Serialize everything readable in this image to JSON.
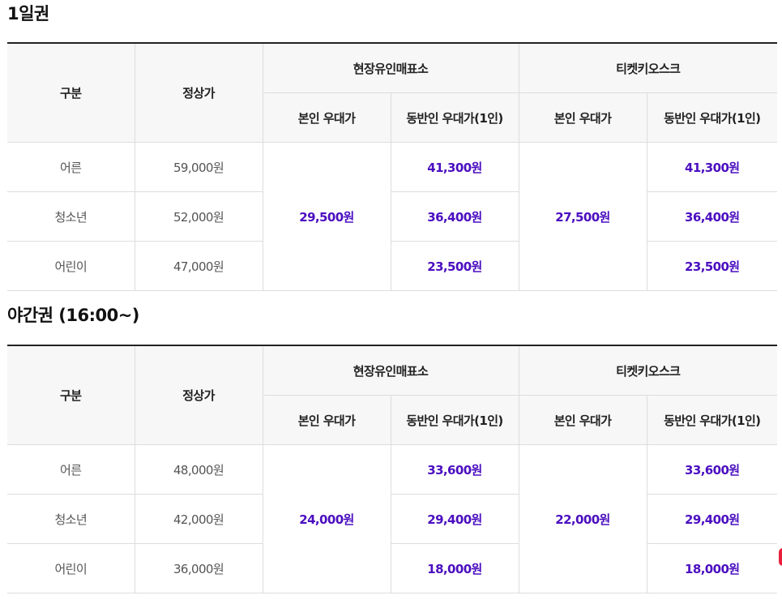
{
  "sections": [
    {
      "title": "1일권",
      "header": {
        "category": "구분",
        "regular": "정상가",
        "group1": "현장유인매표소",
        "group2": "티켓키오스크",
        "self": "본인 우대가",
        "companion": "동반인 우대가(1인)"
      },
      "rows": [
        {
          "category": "어른",
          "regular": "59,000원",
          "comp1": "41,300원",
          "comp2": "41,300원"
        },
        {
          "category": "청소년",
          "regular": "52,000원",
          "comp1": "36,400원",
          "comp2": "36,400원"
        },
        {
          "category": "어린이",
          "regular": "47,000원",
          "comp1": "23,500원",
          "comp2": "23,500원"
        }
      ],
      "self1": "29,500원",
      "self2": "27,500원"
    },
    {
      "title": "야간권 (16:00~)",
      "header": {
        "category": "구분",
        "regular": "정상가",
        "group1": "현장유인매표소",
        "group2": "티켓키오스크",
        "self": "본인 우대가",
        "companion": "동반인 우대가(1인)"
      },
      "rows": [
        {
          "category": "어른",
          "regular": "48,000원",
          "comp1": "33,600원",
          "comp2": "33,600원"
        },
        {
          "category": "청소년",
          "regular": "42,000원",
          "comp1": "29,400원",
          "comp2": "29,400원"
        },
        {
          "category": "어린이",
          "regular": "36,000원",
          "comp1": "18,000원",
          "comp2": "18,000원"
        }
      ],
      "self1": "24,000원",
      "self2": "22,000원"
    }
  ],
  "colors": {
    "highlight": "#4b0fc0",
    "header_bg": "#f7f7f7",
    "border": "#dddddd",
    "top_border": "#222222"
  }
}
